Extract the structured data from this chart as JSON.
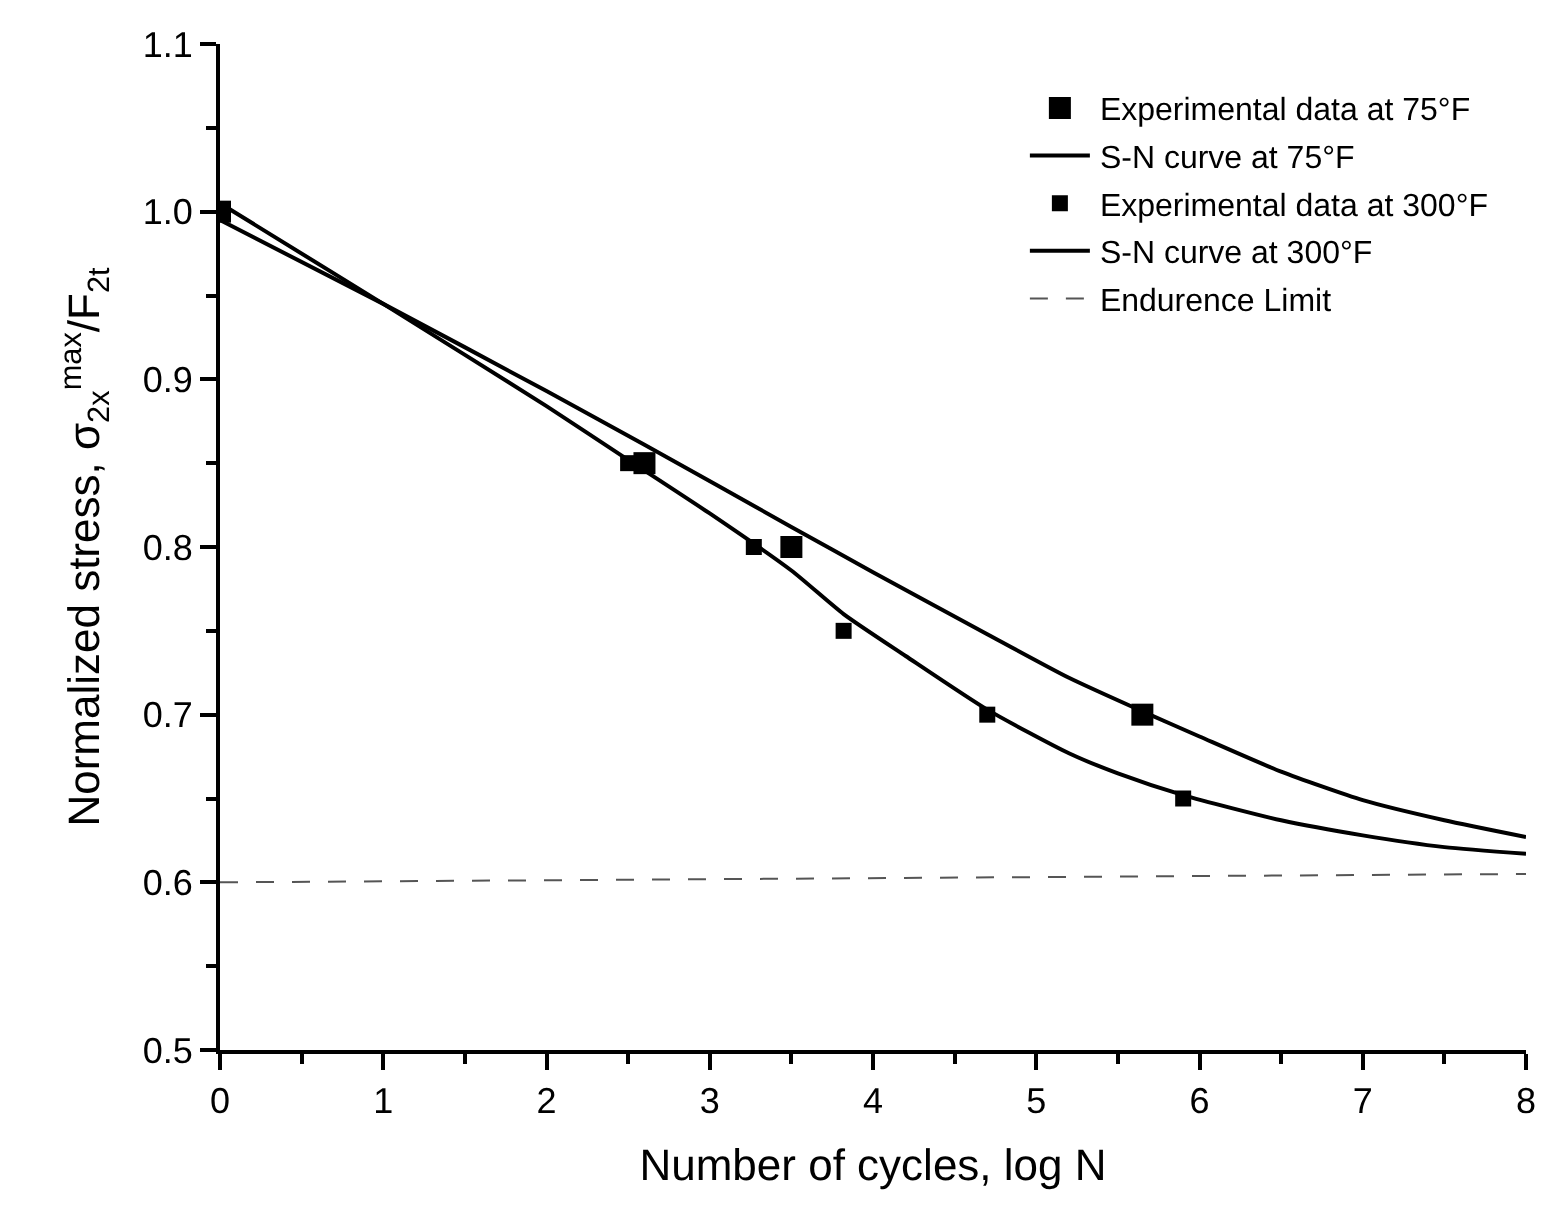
{
  "chart_data": {
    "type": "scatter",
    "xlabel": "Number of cycles, log N",
    "ylabel": "Normalized stress, σ$_{2x}$$^{max}$/F$_{2t}$",
    "xlim": [
      0,
      8
    ],
    "ylim": [
      0.5,
      1.1
    ],
    "xticks": [
      0,
      1,
      2,
      3,
      4,
      5,
      6,
      7,
      8
    ],
    "yticks": [
      0.5,
      0.6,
      0.7,
      0.8,
      0.9,
      {
        "value": 1,
        "label": "1.0"
      },
      1.1
    ],
    "legend": "top right",
    "series": [
      {
        "name": "Experimental data at 75°F",
        "marker": "square",
        "color": "#000000",
        "x": [
          0,
          2.6,
          3.5,
          5.65
        ],
        "values": [
          1.0,
          0.85,
          0.8,
          0.7
        ]
      },
      {
        "name": "S-N curve at 75°F",
        "type": "line",
        "marker": "none",
        "line_style": "solid",
        "color": "#000000",
        "x": [
          0,
          1,
          2,
          2.6,
          3.5,
          4,
          4.7,
          5.2,
          5.65,
          6,
          6.5,
          7,
          7.5,
          8
        ],
        "values": [
          0.995,
          0.945,
          0.893,
          0.861,
          0.812,
          0.785,
          0.748,
          0.722,
          0.702,
          0.687,
          0.666,
          0.649,
          0.637,
          0.627
        ]
      },
      {
        "name": "Experimental data at 300°F",
        "marker": "square",
        "color": "#000000",
        "x": [
          2.5,
          3.27,
          3.82,
          4.7,
          5.9
        ],
        "values": [
          0.85,
          0.8,
          0.75,
          0.7,
          0.65
        ]
      },
      {
        "name": "S-N curve at 300°F",
        "type": "line",
        "marker": "none",
        "line_style": "solid",
        "color": "#000000",
        "x": [
          0,
          1,
          2,
          2.5,
          3,
          3.5,
          3.82,
          4.2,
          4.7,
          5.2,
          5.5,
          5.9,
          6.5,
          7,
          7.5,
          8
        ],
        "values": [
          1.005,
          0.945,
          0.884,
          0.852,
          0.82,
          0.786,
          0.76,
          0.735,
          0.703,
          0.677,
          0.665,
          0.652,
          0.637,
          0.628,
          0.621,
          0.617
        ]
      },
      {
        "name": "Endurence Limit",
        "type": "line",
        "marker": "none",
        "line_style": "dashed",
        "color": "#555555",
        "x": [
          0,
          8
        ],
        "values": [
          0.6,
          0.605
        ]
      }
    ]
  }
}
